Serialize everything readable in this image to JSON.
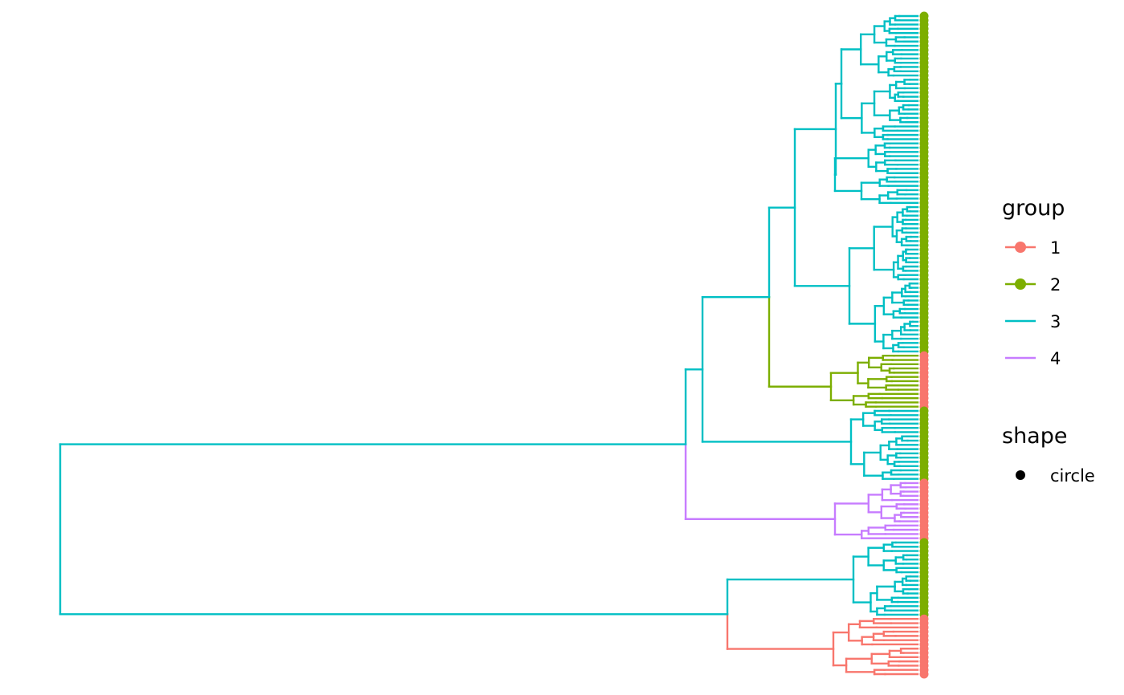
{
  "chart_data": {
    "type": "dendrogram",
    "orientation": "root-left, tips-right",
    "grid": false,
    "legend_placement": "right",
    "colors": {
      "1": "#F8766D",
      "2": "#7CAE00",
      "3": "#00BFC4",
      "4": "#C77CFF"
    },
    "tip_points": {
      "description": "circle markers at the tips, colored by group",
      "blocks": [
        {
          "group": "2",
          "from_tip": 1,
          "to_tip": 80
        },
        {
          "group": "1",
          "from_tip": 81,
          "to_tip": 93
        },
        {
          "group": "2",
          "from_tip": 94,
          "to_tip": 110
        },
        {
          "group": "1",
          "from_tip": 111,
          "to_tip": 124
        },
        {
          "group": "2",
          "from_tip": 125,
          "to_tip": 142
        },
        {
          "group": "1",
          "from_tip": 143,
          "to_tip": 156
        }
      ]
    },
    "clades": [
      {
        "group": "3",
        "tips": [
          1,
          80
        ],
        "node_depth": 0.07
      },
      {
        "group": "2",
        "tips": [
          81,
          93
        ],
        "node_depth": 0.12
      },
      {
        "group": "3",
        "tips": [
          94,
          110
        ],
        "node_depth": 0.07
      },
      {
        "group": "4",
        "tips": [
          111,
          124
        ],
        "node_depth": 0.07
      },
      {
        "group": "3",
        "tips": [
          125,
          142
        ],
        "node_depth": 0.07
      },
      {
        "group": "1",
        "tips": [
          143,
          156
        ],
        "node_depth": 0.07
      }
    ],
    "legends": {
      "group": {
        "title": "group",
        "entries": [
          {
            "label": "1",
            "color": "#F8766D",
            "marker": "line+point"
          },
          {
            "label": "2",
            "color": "#7CAE00",
            "marker": "line+point"
          },
          {
            "label": "3",
            "color": "#00BFC4",
            "marker": "line"
          },
          {
            "label": "4",
            "color": "#C77CFF",
            "marker": "line"
          }
        ]
      },
      "shape": {
        "title": "shape",
        "entries": [
          {
            "label": "circle",
            "color": "#000000",
            "marker": "point"
          }
        ]
      }
    }
  }
}
